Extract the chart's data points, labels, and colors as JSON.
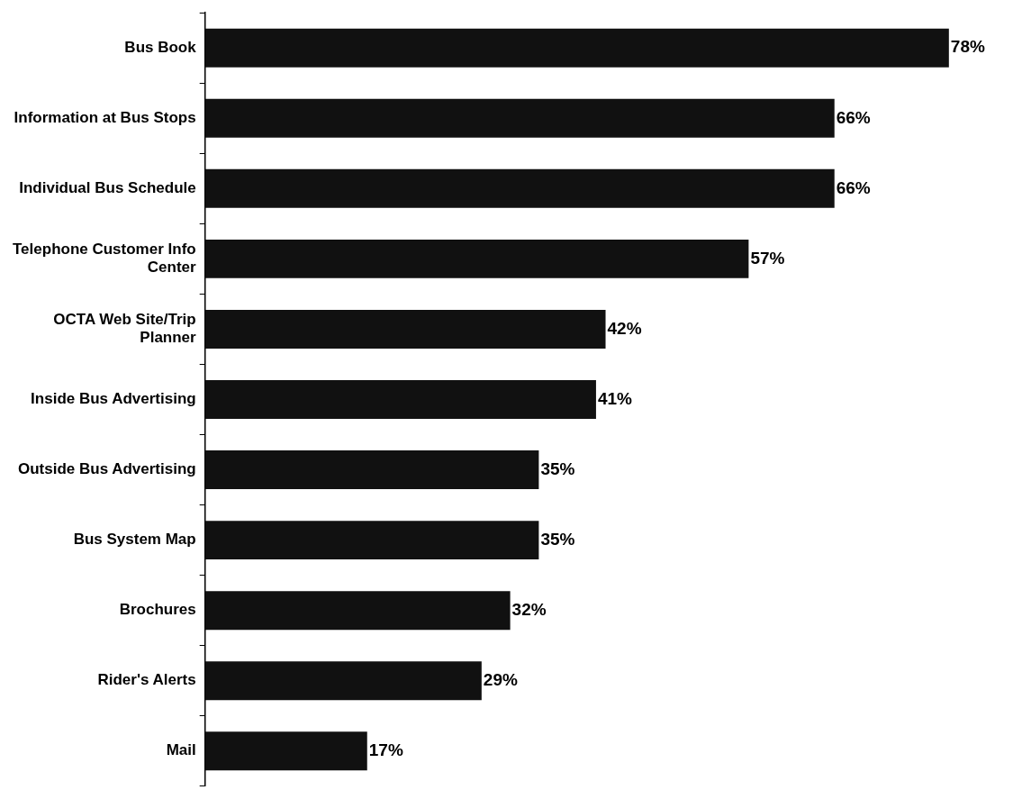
{
  "chart_data": {
    "type": "bar",
    "orientation": "horizontal",
    "categories": [
      "Bus Book",
      "Information at Bus Stops",
      "Individual Bus Schedule",
      "Telephone Customer Info Center",
      "OCTA Web Site/Trip Planner",
      "Inside Bus Advertising",
      "Outside Bus Advertising",
      "Bus System Map",
      "Brochures",
      "Rider's Alerts",
      "Mail"
    ],
    "values": [
      78,
      66,
      66,
      57,
      42,
      41,
      35,
      35,
      32,
      29,
      17
    ],
    "color": "#111111",
    "data_labels": true,
    "value_labels": [
      "78%",
      "66%",
      "66%",
      "57%",
      "42%",
      "41%",
      "35%",
      "35%",
      "32%",
      "29%",
      "17%"
    ],
    "grid": false,
    "legend": false
  }
}
